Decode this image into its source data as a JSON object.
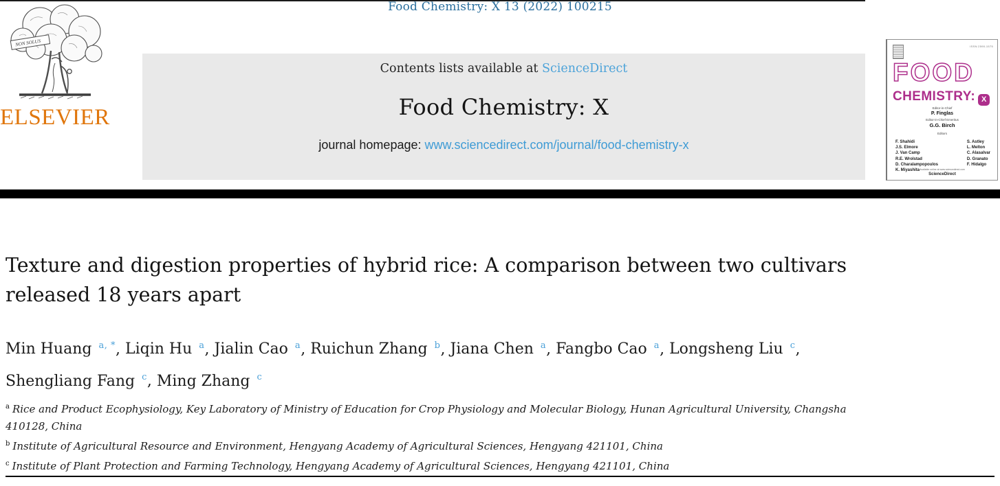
{
  "page": {
    "citation": "Food Chemistry: X 13 (2022) 100215"
  },
  "header": {
    "contents_prefix": "Contents lists available at ",
    "contents_link": "ScienceDirect",
    "journal_title": "Food Chemistry: X",
    "homepage_prefix": "journal homepage: ",
    "homepage_url": "www.sciencedirect.com/journal/food-chemistry-x"
  },
  "elsevier": {
    "wordmark": "ELSEVIER",
    "banner": "NON SOLUS"
  },
  "cover": {
    "issn": "ISSN 2590-1575",
    "title_word": "FOOD",
    "subtitle_word": "CHEMISTRY:",
    "badge_letter": "X",
    "eic_label": "Editor-in-Chief",
    "eic_name": "P. Finglas",
    "emeritus_label": "Editor-in-Chief Emeritus",
    "emeritus_name": "G.G. Birch",
    "editors_label": "Editors",
    "editors_left": [
      "F. Shahidi",
      "J.S. Elmore",
      "J. Van Camp",
      "R.E. Wrolstad",
      "D. Charalampopoulos",
      "K. Miyashita"
    ],
    "editors_right": [
      "S. Astley",
      "L. Melton",
      "C. Alasalvar",
      "D. Granato",
      "F. Hidalgo"
    ],
    "footer_line1": "Available online at www.sciencedirect.com",
    "footer_line2": "ScienceDirect"
  },
  "article": {
    "title": "Texture and digestion properties of hybrid rice: A comparison between two cultivars released 18 years apart",
    "authors": [
      {
        "name": "Min Huang",
        "sup": "a, *"
      },
      {
        "name": "Liqin Hu",
        "sup": "a"
      },
      {
        "name": "Jialin Cao",
        "sup": "a"
      },
      {
        "name": "Ruichun Zhang",
        "sup": "b"
      },
      {
        "name": "Jiana Chen",
        "sup": "a"
      },
      {
        "name": "Fangbo Cao",
        "sup": "a"
      },
      {
        "name": "Longsheng Liu",
        "sup": "c"
      },
      {
        "name": "Shengliang Fang",
        "sup": "c"
      },
      {
        "name": "Ming Zhang",
        "sup": "c"
      }
    ],
    "affiliations": [
      {
        "sup": "a",
        "text": "Rice and Product Ecophysiology, Key Laboratory of Ministry of Education for Crop Physiology and Molecular Biology, Hunan Agricultural University, Changsha 410128, China"
      },
      {
        "sup": "b",
        "text": "Institute of Agricultural Resource and Environment, Hengyang Academy of Agricultural Sciences, Hengyang 421101, China"
      },
      {
        "sup": "c",
        "text": "Institute of Plant Protection and Farming Technology, Hengyang Academy of Agricultural Sciences, Hengyang 421101, China"
      }
    ]
  },
  "colors": {
    "citation_blue": "#2b6f9e",
    "link_blue": "#4da3d9",
    "url_blue": "#3e9bd5",
    "superscript_blue": "#4aa0d8",
    "elsevier_orange": "#e0760c",
    "cover_magenta": "#ad2e8b",
    "header_bg": "#e9e9e9"
  }
}
